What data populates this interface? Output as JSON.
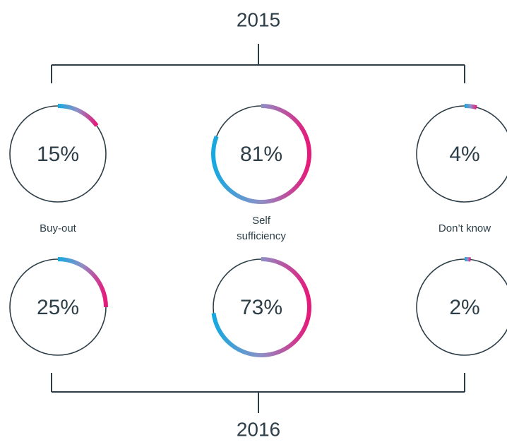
{
  "chart_data": {
    "type": "donut",
    "categories": [
      "Buy-out",
      "Self sufficiency",
      "Don’t know"
    ],
    "series": [
      {
        "name": "2015",
        "values": [
          15,
          81,
          4
        ],
        "value_labels": [
          "15%",
          "81%",
          "4%"
        ]
      },
      {
        "name": "2016",
        "values": [
          25,
          73,
          2
        ],
        "value_labels": [
          "25%",
          "73%",
          "2%"
        ]
      }
    ],
    "ylim": [
      0,
      100
    ],
    "colors": [
      "#14a9e1",
      "#8e8fc6",
      "#e6187a"
    ],
    "ring_color": "#2d3e48"
  }
}
